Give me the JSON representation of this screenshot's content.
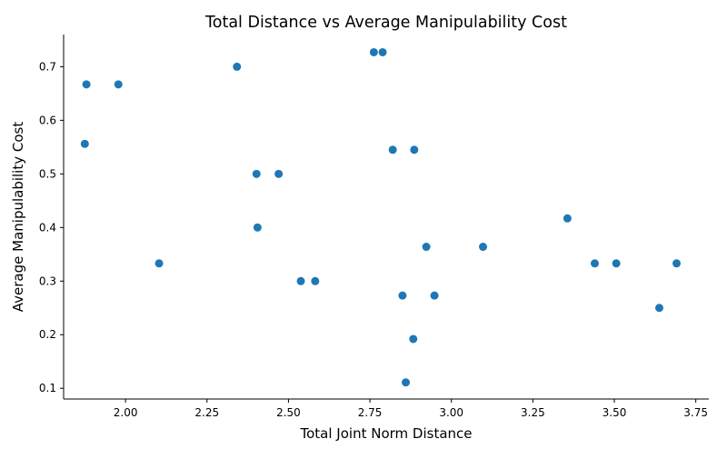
{
  "chart_data": {
    "type": "scatter",
    "title": "Total Distance vs Average Manipulability Cost",
    "xlabel": "Total Joint Norm Distance",
    "ylabel": "Average Manipulability Cost",
    "xlim": [
      1.81,
      3.79
    ],
    "ylim": [
      0.08,
      0.76
    ],
    "xticks": [
      2.0,
      2.25,
      2.5,
      2.75,
      3.0,
      3.25,
      3.5,
      3.75
    ],
    "xtick_labels": [
      "2.00",
      "2.25",
      "2.50",
      "2.75",
      "3.00",
      "3.25",
      "3.50",
      "3.75"
    ],
    "yticks": [
      0.1,
      0.2,
      0.3,
      0.4,
      0.5,
      0.6,
      0.7
    ],
    "ytick_labels": [
      "0.1",
      "0.2",
      "0.3",
      "0.4",
      "0.5",
      "0.6",
      "0.7"
    ],
    "grid": false,
    "marker_color": "#1f77b4",
    "points": [
      {
        "x": 1.875,
        "y": 0.556
      },
      {
        "x": 1.88,
        "y": 0.667
      },
      {
        "x": 1.978,
        "y": 0.667
      },
      {
        "x": 2.103,
        "y": 0.333
      },
      {
        "x": 2.342,
        "y": 0.7
      },
      {
        "x": 2.402,
        "y": 0.5
      },
      {
        "x": 2.405,
        "y": 0.4
      },
      {
        "x": 2.47,
        "y": 0.5
      },
      {
        "x": 2.538,
        "y": 0.3
      },
      {
        "x": 2.582,
        "y": 0.3
      },
      {
        "x": 2.762,
        "y": 0.727
      },
      {
        "x": 2.789,
        "y": 0.727
      },
      {
        "x": 2.82,
        "y": 0.545
      },
      {
        "x": 2.85,
        "y": 0.273
      },
      {
        "x": 2.86,
        "y": 0.111
      },
      {
        "x": 2.883,
        "y": 0.192
      },
      {
        "x": 2.886,
        "y": 0.545
      },
      {
        "x": 2.923,
        "y": 0.364
      },
      {
        "x": 2.948,
        "y": 0.273
      },
      {
        "x": 3.097,
        "y": 0.364
      },
      {
        "x": 3.356,
        "y": 0.417
      },
      {
        "x": 3.44,
        "y": 0.333
      },
      {
        "x": 3.506,
        "y": 0.333
      },
      {
        "x": 3.638,
        "y": 0.25
      },
      {
        "x": 3.691,
        "y": 0.333
      }
    ]
  }
}
